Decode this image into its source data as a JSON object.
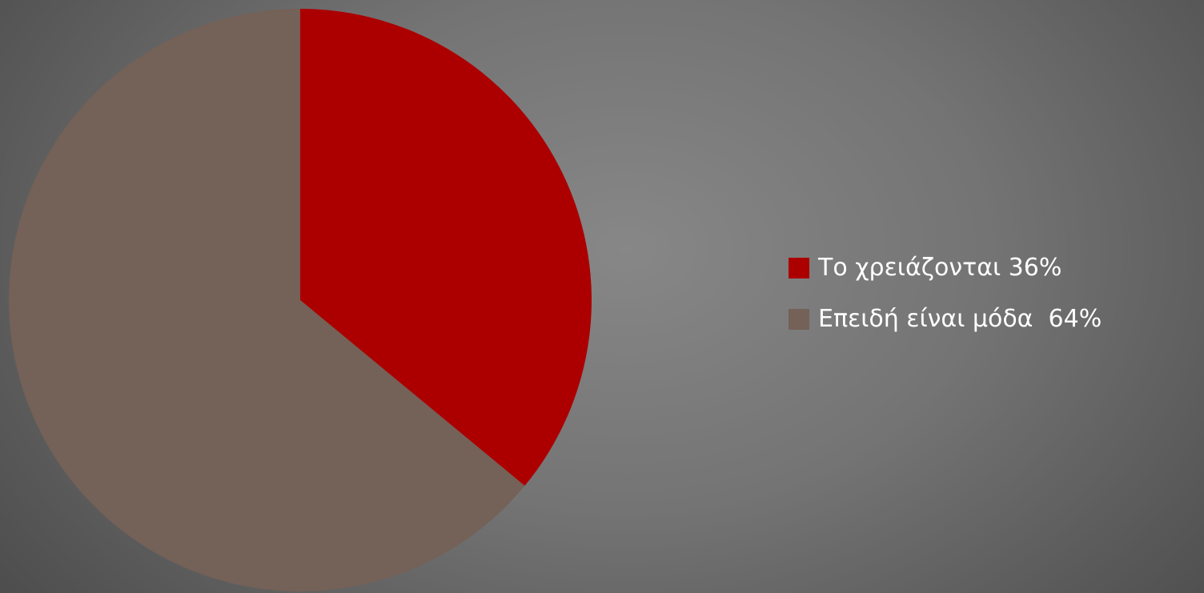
{
  "chart_data": {
    "type": "pie",
    "title": "",
    "start_angle_deg": 0,
    "direction": "clockwise",
    "slices": [
      {
        "label": "Το χρειάζονται 36%",
        "value": 36,
        "color": "#ac0000"
      },
      {
        "label": "Επειδή είναι μόδα  64%",
        "value": 64,
        "color": "#746157"
      }
    ],
    "legend_position": "right"
  }
}
